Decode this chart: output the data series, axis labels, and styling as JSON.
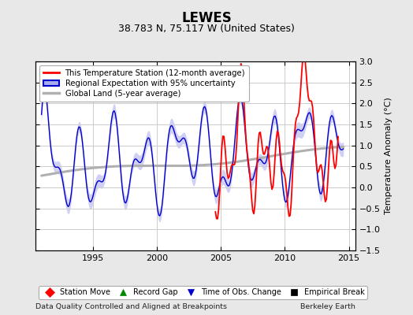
{
  "title": "LEWES",
  "subtitle": "38.783 N, 75.117 W (United States)",
  "xlabel_left": "Data Quality Controlled and Aligned at Breakpoints",
  "xlabel_right": "Berkeley Earth",
  "ylabel": "Temperature Anomaly (°C)",
  "xlim": [
    1990.5,
    2015.5
  ],
  "ylim": [
    -1.5,
    3.0
  ],
  "yticks": [
    -1.5,
    -1.0,
    -0.5,
    0.0,
    0.5,
    1.0,
    1.5,
    2.0,
    2.5,
    3.0
  ],
  "xticks": [
    1995,
    2000,
    2005,
    2010,
    2015
  ],
  "bg_color": "#e8e8e8",
  "plot_bg_color": "#ffffff",
  "grid_color": "#cccccc",
  "legend_labels": [
    "This Temperature Station (12-month average)",
    "Regional Expectation with 95% uncertainty",
    "Global Land (5-year average)"
  ],
  "marker_legend_labels": [
    "Station Move",
    "Record Gap",
    "Time of Obs. Change",
    "Empirical Break"
  ],
  "marker_colors": [
    "#ff0000",
    "#008800",
    "#0000cc",
    "#000000"
  ],
  "marker_shapes": [
    "D",
    "^",
    "v",
    "s"
  ],
  "title_fontsize": 12,
  "subtitle_fontsize": 9,
  "axis_fontsize": 8,
  "tick_fontsize": 8,
  "figsize": [
    5.24,
    4.0
  ],
  "dpi": 100
}
